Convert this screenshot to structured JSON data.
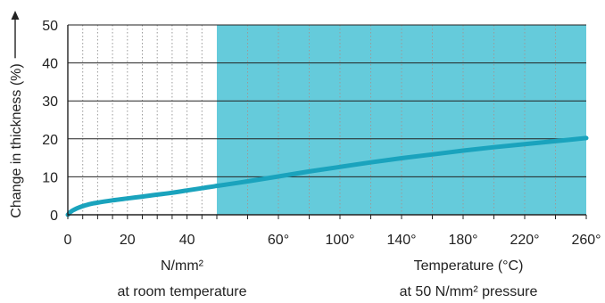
{
  "chart_data": {
    "type": "line",
    "ylabel": "Change in thickness (%)",
    "ylim": [
      0,
      50
    ],
    "yticks": [
      0,
      10,
      20,
      30,
      40,
      50
    ],
    "grid": true,
    "colors": {
      "line": "#1aa3bd",
      "shade": "#65cbdb",
      "axis": "#222222",
      "hgrid": "#222222",
      "vgrid": "#9a9a9a"
    },
    "segments": [
      {
        "id": "pressure",
        "xlabel": "N/mm²",
        "caption": "at room temperature",
        "xlim": [
          0,
          50
        ],
        "xticks": [
          0,
          20,
          40
        ],
        "tick_labels": [
          "0",
          "20",
          "40"
        ],
        "shaded": false,
        "x": [
          0,
          1,
          2,
          4,
          6,
          8,
          10,
          15,
          20,
          25,
          30,
          35,
          40,
          45,
          50
        ],
        "y": [
          0,
          0.8,
          1.3,
          2.0,
          2.5,
          2.9,
          3.2,
          3.8,
          4.3,
          4.8,
          5.3,
          5.8,
          6.4,
          7.0,
          7.6
        ]
      },
      {
        "id": "temperature",
        "xlabel": "Temperature (°C)",
        "caption": "at 50 N/mm² pressure",
        "xlim": [
          20,
          260
        ],
        "xticks": [
          60,
          100,
          140,
          180,
          220,
          260
        ],
        "tick_labels": [
          "60°",
          "100°",
          "140°",
          "180°",
          "220°",
          "260°"
        ],
        "shaded": true,
        "x": [
          20,
          40,
          60,
          80,
          100,
          120,
          140,
          160,
          180,
          200,
          220,
          240,
          260
        ],
        "y": [
          7.6,
          8.8,
          10.1,
          11.4,
          12.6,
          13.8,
          14.9,
          15.9,
          16.9,
          17.8,
          18.6,
          19.4,
          20.2
        ]
      }
    ]
  }
}
